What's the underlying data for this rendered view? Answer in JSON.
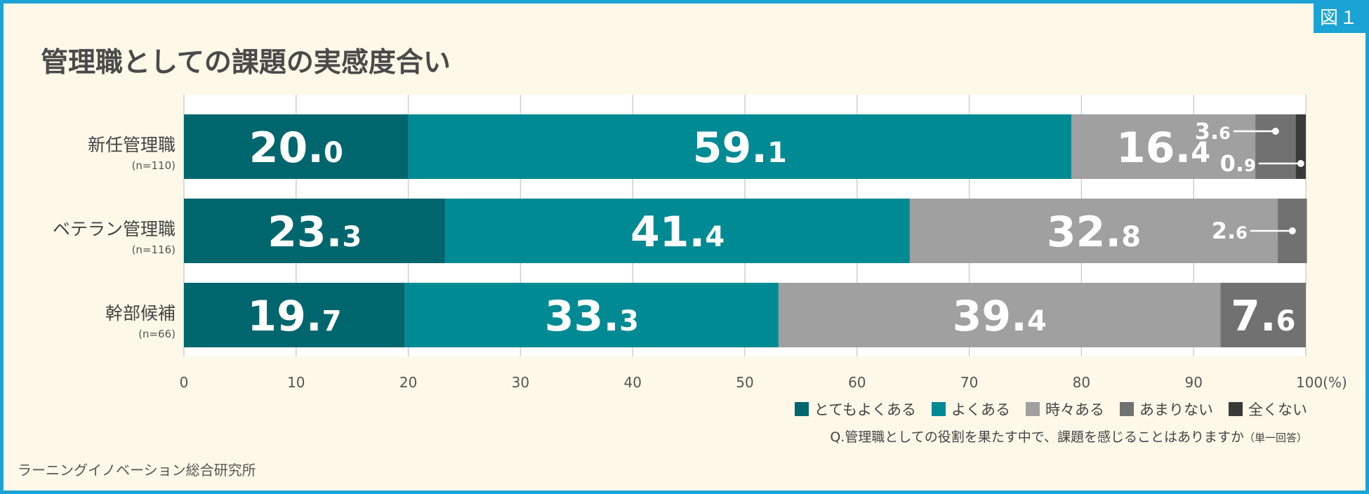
{
  "figure_label": "図１",
  "source": "ラーニングイノベーション総合研究所",
  "question": {
    "text": "Q.管理職としての役割を果たす中で、課題を感じることはありますか",
    "note": "（単一回答）"
  },
  "colors": {
    "very_often": "#00666e",
    "often": "#008a93",
    "sometimes": "#a0a0a0",
    "rarely": "#717171",
    "never": "#3a3a3a",
    "accent": "#1ba3d6"
  },
  "chart_data": {
    "type": "bar",
    "orientation": "horizontal-stacked",
    "title": "管理職としての課題の実感度合い",
    "xlim": [
      0,
      100
    ],
    "x_ticks": [
      "0",
      "10",
      "20",
      "30",
      "40",
      "50",
      "60",
      "70",
      "80",
      "90",
      "100(%)"
    ],
    "categories": [
      {
        "label": "新任管理職",
        "n": "(n=110)"
      },
      {
        "label": "ベテラン管理職",
        "n": "(n=116)"
      },
      {
        "label": "幹部候補",
        "n": "(n=66)"
      }
    ],
    "series": [
      {
        "name": "とてもよくある",
        "color": "#00666e",
        "values": [
          20.0,
          23.3,
          19.7
        ],
        "labels": [
          "20.0",
          "23.3",
          "19.7"
        ]
      },
      {
        "name": "よくある",
        "color": "#008a93",
        "values": [
          59.1,
          41.4,
          33.3
        ],
        "labels": [
          "59.1",
          "41.4",
          "33.3"
        ]
      },
      {
        "name": "時々ある",
        "color": "#a0a0a0",
        "values": [
          16.4,
          32.8,
          39.4
        ],
        "labels": [
          "16.4",
          "32.8",
          "39.4"
        ]
      },
      {
        "name": "あまりない",
        "color": "#717171",
        "values": [
          3.6,
          2.6,
          7.6
        ],
        "labels": [
          "3.6",
          "2.6",
          "7.6"
        ]
      },
      {
        "name": "全くない",
        "color": "#3a3a3a",
        "values": [
          0.9,
          0,
          0
        ],
        "labels": [
          "0.9",
          "",
          ""
        ]
      }
    ]
  }
}
